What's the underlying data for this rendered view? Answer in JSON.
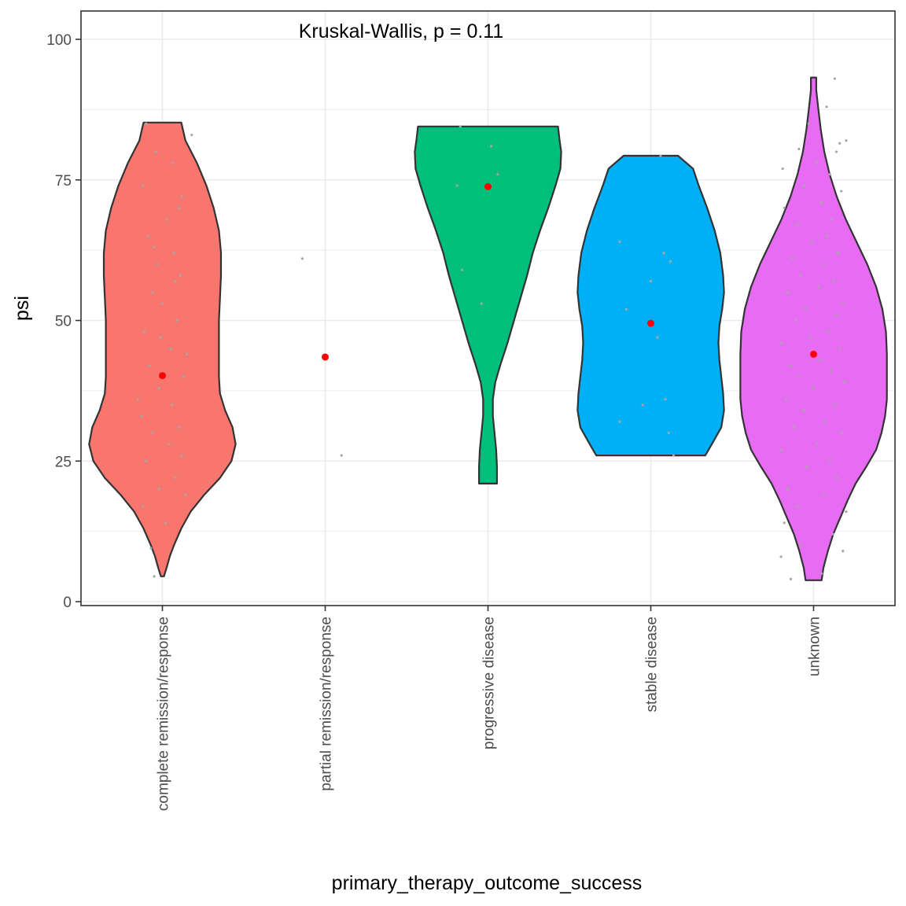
{
  "chart_data": {
    "type": "violin",
    "annotation": "Kruskal-Wallis, p = 0.11",
    "xlabel": "primary_therapy_outcome_success",
    "ylabel": "psi",
    "ylim": [
      0,
      100
    ],
    "yticks": [
      0,
      25,
      50,
      75,
      100
    ],
    "grid": true,
    "categories": [
      "complete remission/response",
      "partial remission/response",
      "progressive disease",
      "stable disease",
      "unknown"
    ],
    "colors": [
      "#F8766D",
      "#A3A500",
      "#00BF7D",
      "#00B0F6",
      "#E76BF3"
    ],
    "mean_color": "#FF0000",
    "violins": [
      {
        "category": "complete remission/response",
        "min": 4.5,
        "max": 85.2,
        "profile": [
          [
            4.5,
            1.5
          ],
          [
            6,
            4
          ],
          [
            8,
            7
          ],
          [
            10,
            11
          ],
          [
            13,
            18
          ],
          [
            16,
            27
          ],
          [
            19,
            40
          ],
          [
            22,
            55
          ],
          [
            25,
            66
          ],
          [
            28,
            70
          ],
          [
            31,
            67
          ],
          [
            34,
            60
          ],
          [
            37,
            55
          ],
          [
            40,
            54
          ],
          [
            43,
            54
          ],
          [
            46,
            54
          ],
          [
            50,
            54
          ],
          [
            54,
            55
          ],
          [
            58,
            56
          ],
          [
            62,
            56
          ],
          [
            66,
            54
          ],
          [
            70,
            49
          ],
          [
            74,
            42
          ],
          [
            78,
            33
          ],
          [
            82,
            22
          ],
          [
            85.2,
            18
          ]
        ],
        "mean": 40.2,
        "points": [
          [
            -0.05,
            4.5
          ],
          [
            -0.07,
            9.5
          ],
          [
            -0.12,
            17
          ],
          [
            -0.02,
            20
          ],
          [
            0.08,
            22
          ],
          [
            -0.1,
            25
          ],
          [
            0.12,
            26
          ],
          [
            0.04,
            28
          ],
          [
            -0.06,
            30
          ],
          [
            0.1,
            31
          ],
          [
            -0.13,
            33
          ],
          [
            0.06,
            35
          ],
          [
            -0.02,
            38
          ],
          [
            0.13,
            40
          ],
          [
            -0.08,
            42
          ],
          [
            0.05,
            45
          ],
          [
            -0.11,
            48
          ],
          [
            0.09,
            50
          ],
          [
            0.0,
            53
          ],
          [
            -0.06,
            55
          ],
          [
            0.11,
            58
          ],
          [
            -0.03,
            60
          ],
          [
            0.07,
            62
          ],
          [
            -0.09,
            65
          ],
          [
            0.03,
            68
          ],
          [
            0.1,
            70
          ],
          [
            -0.12,
            74
          ],
          [
            0.06,
            78
          ],
          [
            -0.04,
            80
          ],
          [
            0.18,
            83
          ],
          [
            -0.1,
            85
          ],
          [
            0.02,
            14
          ],
          [
            0.14,
            19
          ],
          [
            -0.15,
            36
          ],
          [
            0.15,
            44
          ],
          [
            -0.01,
            47
          ],
          [
            0.08,
            57
          ],
          [
            -0.05,
            63
          ],
          [
            0.12,
            72
          ]
        ]
      },
      {
        "category": "partial remission/response",
        "min": null,
        "max": null,
        "profile": [],
        "mean": 43.5,
        "points": [
          [
            -0.14,
            61
          ],
          [
            0.1,
            26
          ]
        ]
      },
      {
        "category": "progressive disease",
        "min": 21,
        "max": 84.5,
        "profile": [
          [
            21,
            11
          ],
          [
            24,
            11
          ],
          [
            27,
            10
          ],
          [
            30,
            8
          ],
          [
            33,
            6
          ],
          [
            36,
            6
          ],
          [
            39,
            9
          ],
          [
            42,
            15
          ],
          [
            46,
            24
          ],
          [
            50,
            32
          ],
          [
            54,
            40
          ],
          [
            58,
            48
          ],
          [
            62,
            55
          ],
          [
            66,
            64
          ],
          [
            70,
            74
          ],
          [
            74,
            83
          ],
          [
            77,
            89
          ],
          [
            80,
            90
          ],
          [
            82,
            88
          ],
          [
            84.5,
            86
          ]
        ],
        "mean": 73.8,
        "points": [
          [
            -0.17,
            84.5
          ],
          [
            0.02,
            81
          ],
          [
            0.06,
            76
          ],
          [
            -0.19,
            74
          ],
          [
            -0.16,
            59
          ],
          [
            -0.04,
            53
          ]
        ]
      },
      {
        "category": "stable disease",
        "min": 26,
        "max": 79.3,
        "profile": [
          [
            26,
            58
          ],
          [
            28,
            65
          ],
          [
            31,
            75
          ],
          [
            34,
            78
          ],
          [
            37,
            77
          ],
          [
            40,
            75
          ],
          [
            43,
            73
          ],
          [
            46,
            72
          ],
          [
            49,
            73
          ],
          [
            52,
            76
          ],
          [
            55,
            78
          ],
          [
            58,
            77
          ],
          [
            62,
            74
          ],
          [
            66,
            68
          ],
          [
            70,
            60
          ],
          [
            74,
            51
          ],
          [
            77,
            45
          ],
          [
            79.3,
            29
          ]
        ],
        "mean": 49.5,
        "points": [
          [
            0.06,
            79.3
          ],
          [
            -0.19,
            64
          ],
          [
            0.08,
            62
          ],
          [
            0.12,
            60.5
          ],
          [
            0.0,
            57
          ],
          [
            -0.15,
            52
          ],
          [
            0.04,
            47
          ],
          [
            0.09,
            36
          ],
          [
            -0.05,
            35
          ],
          [
            -0.19,
            32
          ],
          [
            0.11,
            30
          ],
          [
            0.14,
            26
          ]
        ]
      },
      {
        "category": "unknown",
        "min": 3.8,
        "max": 93.2,
        "profile": [
          [
            3.8,
            9
          ],
          [
            6,
            11
          ],
          [
            9,
            16
          ],
          [
            12,
            22
          ],
          [
            15,
            30
          ],
          [
            18,
            38
          ],
          [
            21,
            47
          ],
          [
            24,
            59
          ],
          [
            27,
            70
          ],
          [
            30,
            76
          ],
          [
            33,
            80
          ],
          [
            36,
            82
          ],
          [
            40,
            82
          ],
          [
            44,
            82
          ],
          [
            48,
            81
          ],
          [
            52,
            77
          ],
          [
            56,
            70
          ],
          [
            60,
            60
          ],
          [
            64,
            48
          ],
          [
            68,
            36
          ],
          [
            72,
            26
          ],
          [
            76,
            18
          ],
          [
            80,
            12
          ],
          [
            84,
            8
          ],
          [
            88,
            5
          ],
          [
            91,
            3
          ],
          [
            93.2,
            3
          ]
        ],
        "mean": 44,
        "points": [
          [
            -0.14,
            4
          ],
          [
            0.05,
            5
          ],
          [
            -0.2,
            8
          ],
          [
            0.18,
            9
          ],
          [
            -0.08,
            10
          ],
          [
            0.12,
            12
          ],
          [
            -0.18,
            14
          ],
          [
            0.2,
            16
          ],
          [
            -0.1,
            17
          ],
          [
            0.06,
            19
          ],
          [
            -0.16,
            20
          ],
          [
            0.15,
            22
          ],
          [
            -0.04,
            24
          ],
          [
            0.1,
            25
          ],
          [
            -0.2,
            27
          ],
          [
            0.02,
            28
          ],
          [
            0.17,
            30
          ],
          [
            -0.12,
            31
          ],
          [
            0.07,
            32
          ],
          [
            -0.06,
            34
          ],
          [
            0.13,
            35
          ],
          [
            -0.17,
            36
          ],
          [
            0.0,
            38
          ],
          [
            0.19,
            39
          ],
          [
            -0.09,
            40
          ],
          [
            0.11,
            41
          ],
          [
            -0.14,
            42
          ],
          [
            0.04,
            43
          ],
          [
            0.16,
            45
          ],
          [
            -0.2,
            46
          ],
          [
            -0.02,
            47
          ],
          [
            0.09,
            48
          ],
          [
            -0.11,
            50
          ],
          [
            0.14,
            51
          ],
          [
            -0.05,
            52
          ],
          [
            0.18,
            53
          ],
          [
            -0.16,
            55
          ],
          [
            0.03,
            56
          ],
          [
            0.12,
            57
          ],
          [
            -0.08,
            58
          ],
          [
            0.06,
            60
          ],
          [
            -0.13,
            61
          ],
          [
            0.15,
            62
          ],
          [
            -0.01,
            64
          ],
          [
            0.08,
            65
          ],
          [
            -0.1,
            67
          ],
          [
            0.11,
            68
          ],
          [
            -0.18,
            70
          ],
          [
            0.05,
            71
          ],
          [
            0.17,
            73
          ],
          [
            -0.06,
            74
          ],
          [
            0.1,
            76
          ],
          [
            -0.19,
            77
          ],
          [
            0.02,
            78
          ],
          [
            0.14,
            80
          ],
          [
            -0.09,
            80.5
          ],
          [
            0.16,
            81.5
          ],
          [
            0.2,
            82
          ],
          [
            0.13,
            93
          ],
          [
            -0.03,
            85
          ],
          [
            0.08,
            88
          ]
        ]
      }
    ]
  }
}
